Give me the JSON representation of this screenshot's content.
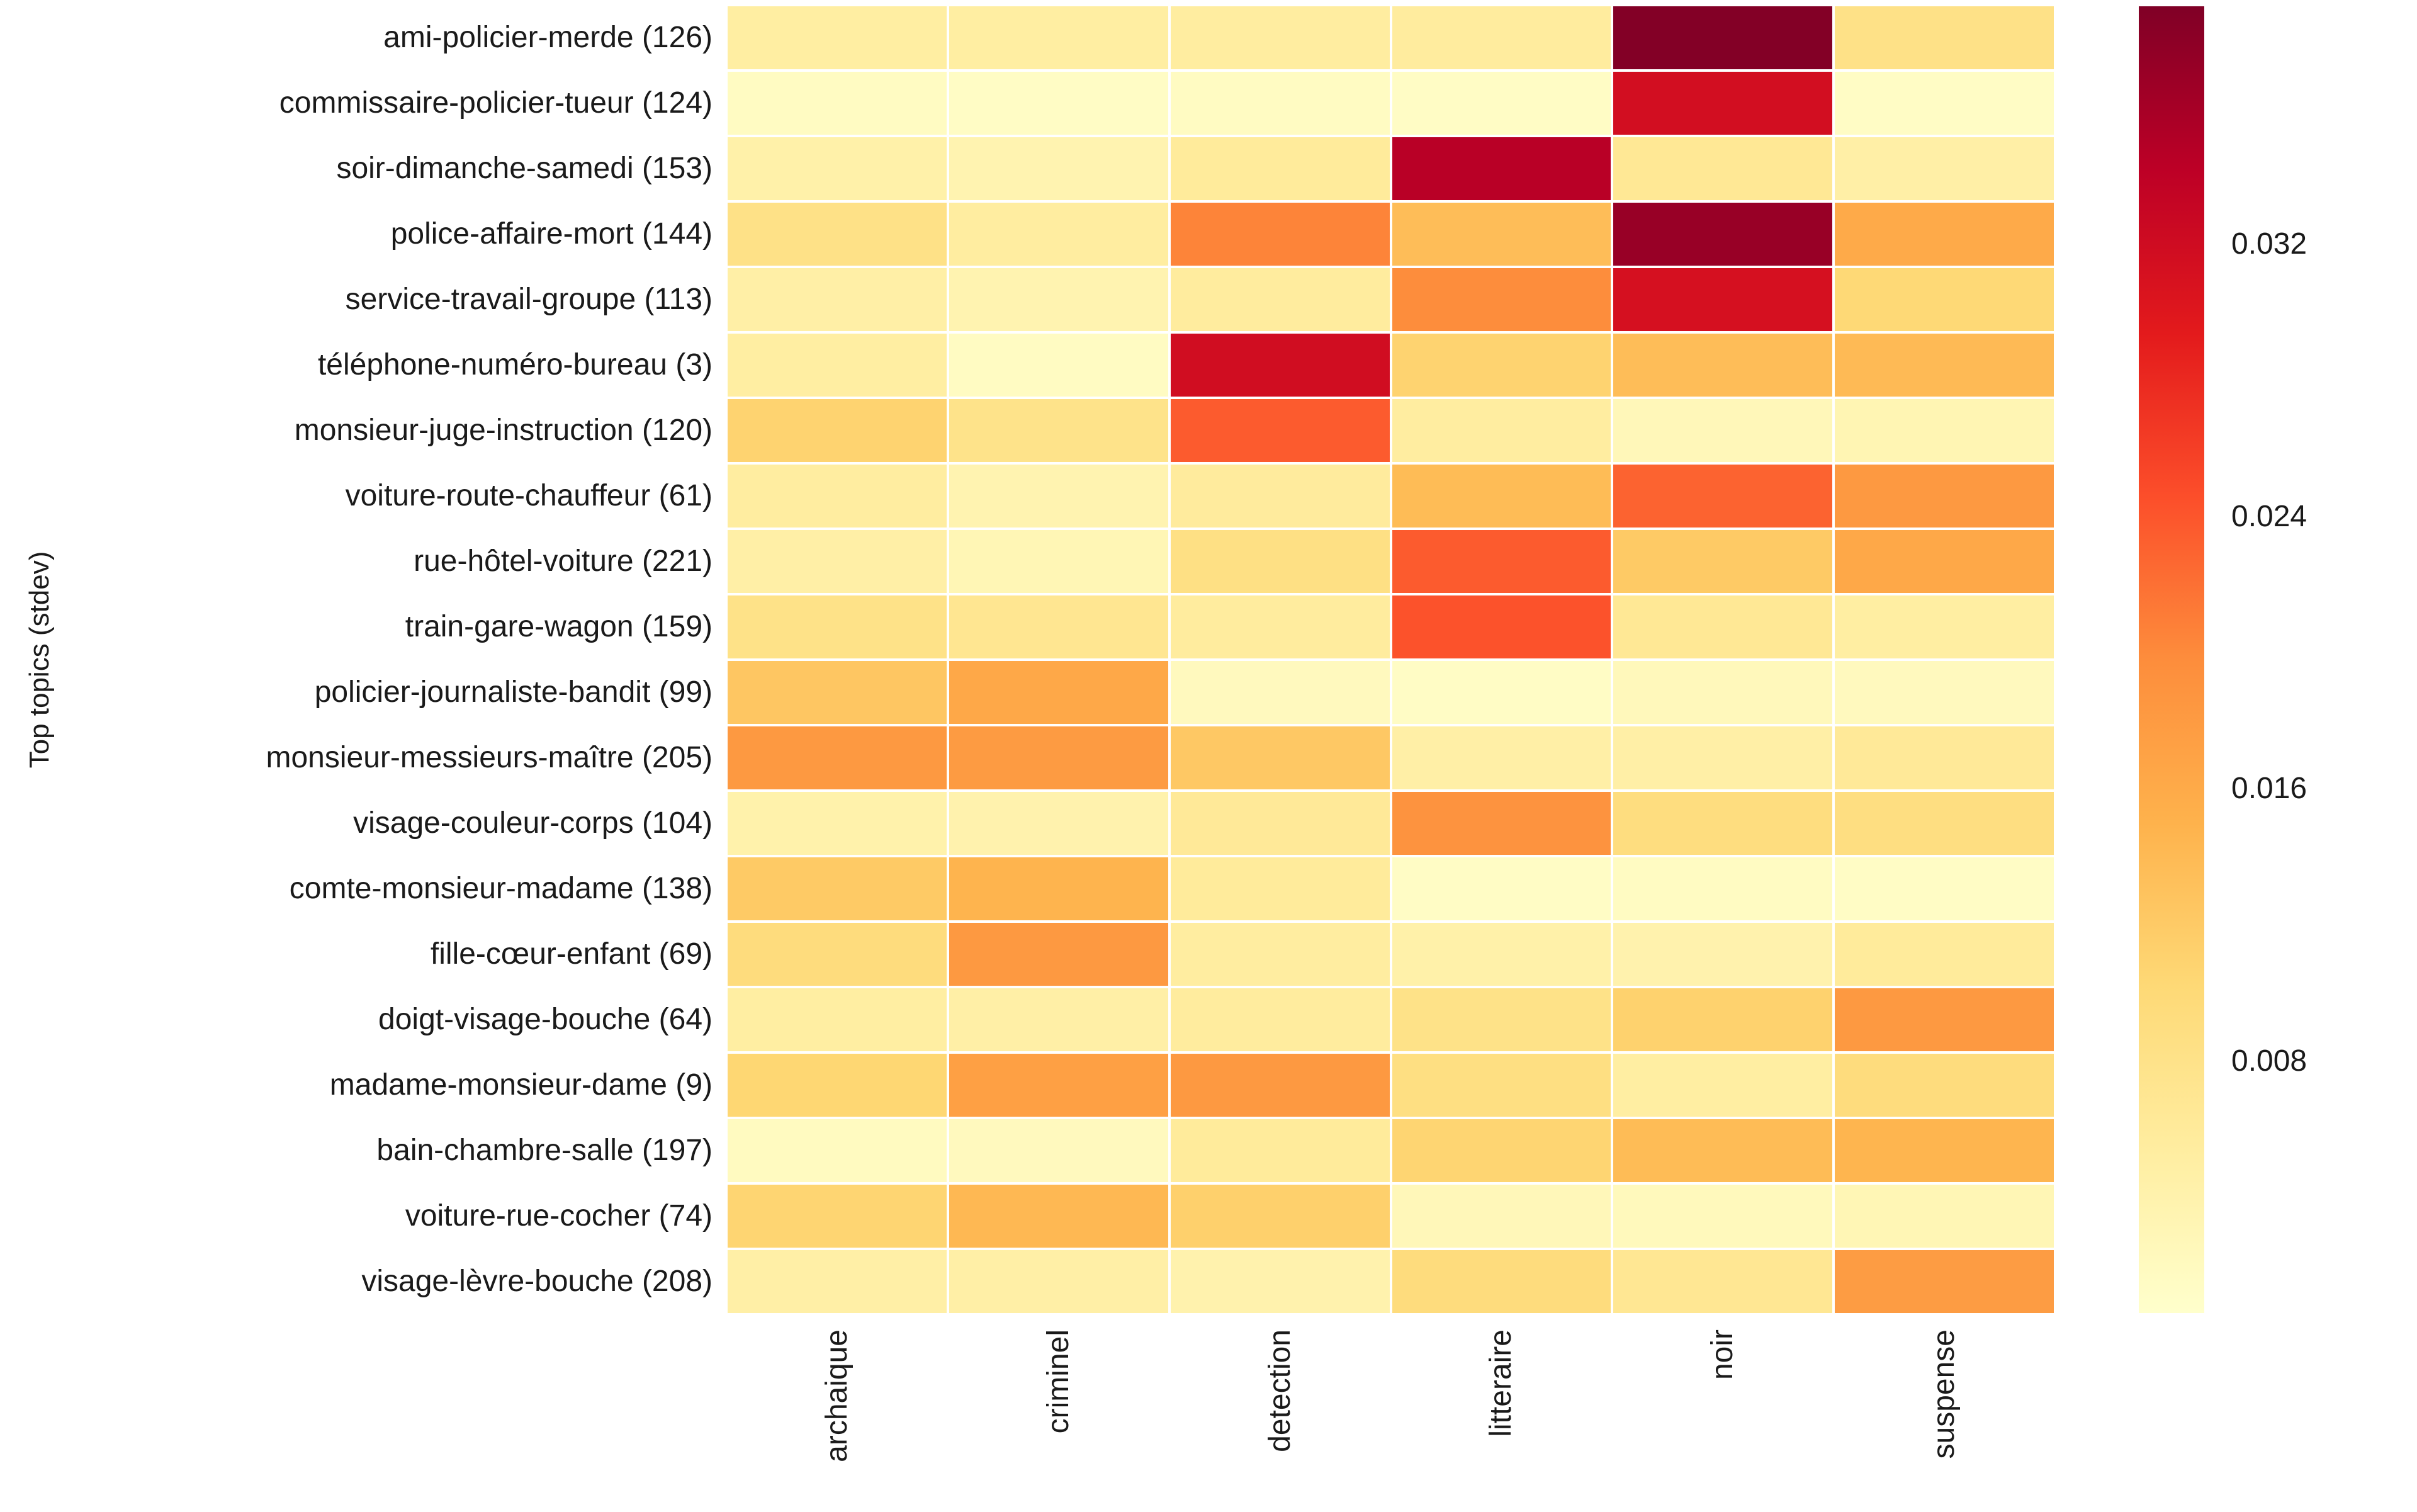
{
  "chart_data": {
    "type": "heatmap",
    "title": "",
    "xlabel": "",
    "ylabel": "Top topics (stdev)",
    "grid": false,
    "colormap": "YlOrRd",
    "colormap_stops": [
      "#ffffcc",
      "#ffeda0",
      "#fed976",
      "#feb24c",
      "#fd8d3c",
      "#fc4e2a",
      "#e31a1c",
      "#bd0026",
      "#800026"
    ],
    "vmin": 0.0006,
    "vmax": 0.039,
    "colorbar": {
      "position": "right",
      "tick_values": [
        0.032,
        0.024,
        0.016,
        0.008
      ],
      "tick_labels": [
        "0.032",
        "0.024",
        "0.016",
        "0.008"
      ]
    },
    "categories": [
      "archaique",
      "criminel",
      "detection",
      "litteraire",
      "noir",
      "suspense"
    ],
    "rows": [
      {
        "label": "ami-policier-merde (126)",
        "values": [
          0.0052,
          0.0052,
          0.0054,
          0.0056,
          0.0388,
          0.0083
        ]
      },
      {
        "label": "commissaire-policier-tueur (124)",
        "values": [
          0.0017,
          0.0014,
          0.0017,
          0.0014,
          0.0316,
          0.0014
        ]
      },
      {
        "label": "soir-dimanche-samedi (153)",
        "values": [
          0.0044,
          0.0037,
          0.006,
          0.0345,
          0.0067,
          0.0048
        ]
      },
      {
        "label": "police-affaire-mort (144)",
        "values": [
          0.0083,
          0.0054,
          0.0205,
          0.0136,
          0.0371,
          0.016
        ]
      },
      {
        "label": "service-travail-groupe (113)",
        "values": [
          0.0048,
          0.0037,
          0.0056,
          0.0198,
          0.0312,
          0.0102
        ]
      },
      {
        "label": "téléphone-numéro-bureau (3)",
        "values": [
          0.0052,
          0.0017,
          0.0318,
          0.0109,
          0.0136,
          0.014
        ]
      },
      {
        "label": "monsieur-juge-instruction (120)",
        "values": [
          0.0109,
          0.0079,
          0.0236,
          0.0054,
          0.0027,
          0.0033
        ]
      },
      {
        "label": "voiture-route-chauffeur (61)",
        "values": [
          0.0054,
          0.0037,
          0.0058,
          0.0138,
          0.023,
          0.0182
        ]
      },
      {
        "label": "rue-hôtel-voiture (221)",
        "values": [
          0.0048,
          0.0031,
          0.0086,
          0.0236,
          0.0121,
          0.0163
        ]
      },
      {
        "label": "train-gare-wagon (159)",
        "values": [
          0.0081,
          0.0071,
          0.0056,
          0.0243,
          0.0067,
          0.0052
        ]
      },
      {
        "label": "policier-journaliste-bandit (99)",
        "values": [
          0.0125,
          0.0163,
          0.0021,
          0.0014,
          0.0025,
          0.0021
        ]
      },
      {
        "label": "monsieur-messieurs-maître (205)",
        "values": [
          0.0182,
          0.018,
          0.0123,
          0.0048,
          0.0048,
          0.0063
        ]
      },
      {
        "label": "visage-couleur-corps (104)",
        "values": [
          0.0042,
          0.004,
          0.0063,
          0.019,
          0.0092,
          0.009
        ]
      },
      {
        "label": "comte-monsieur-madame (138)",
        "values": [
          0.0121,
          0.0148,
          0.006,
          0.0014,
          0.0017,
          0.0014
        ]
      },
      {
        "label": "fille-cœur-enfant (69)",
        "values": [
          0.0094,
          0.0182,
          0.0054,
          0.0044,
          0.004,
          0.006
        ]
      },
      {
        "label": "doigt-visage-bouche (64)",
        "values": [
          0.0052,
          0.0048,
          0.0056,
          0.0081,
          0.0111,
          0.0182
        ]
      },
      {
        "label": "madame-monsieur-dame (9)",
        "values": [
          0.0105,
          0.0174,
          0.0182,
          0.0088,
          0.0052,
          0.0094
        ]
      },
      {
        "label": "bain-chambre-salle (197)",
        "values": [
          0.0019,
          0.0021,
          0.006,
          0.0107,
          0.0138,
          0.0146
        ]
      },
      {
        "label": "voiture-rue-cocher (74)",
        "values": [
          0.0107,
          0.0142,
          0.0113,
          0.0027,
          0.0023,
          0.0031
        ]
      },
      {
        "label": "visage-lèvre-bouche (208)",
        "values": [
          0.0048,
          0.0048,
          0.004,
          0.0094,
          0.0069,
          0.0178
        ]
      }
    ]
  }
}
